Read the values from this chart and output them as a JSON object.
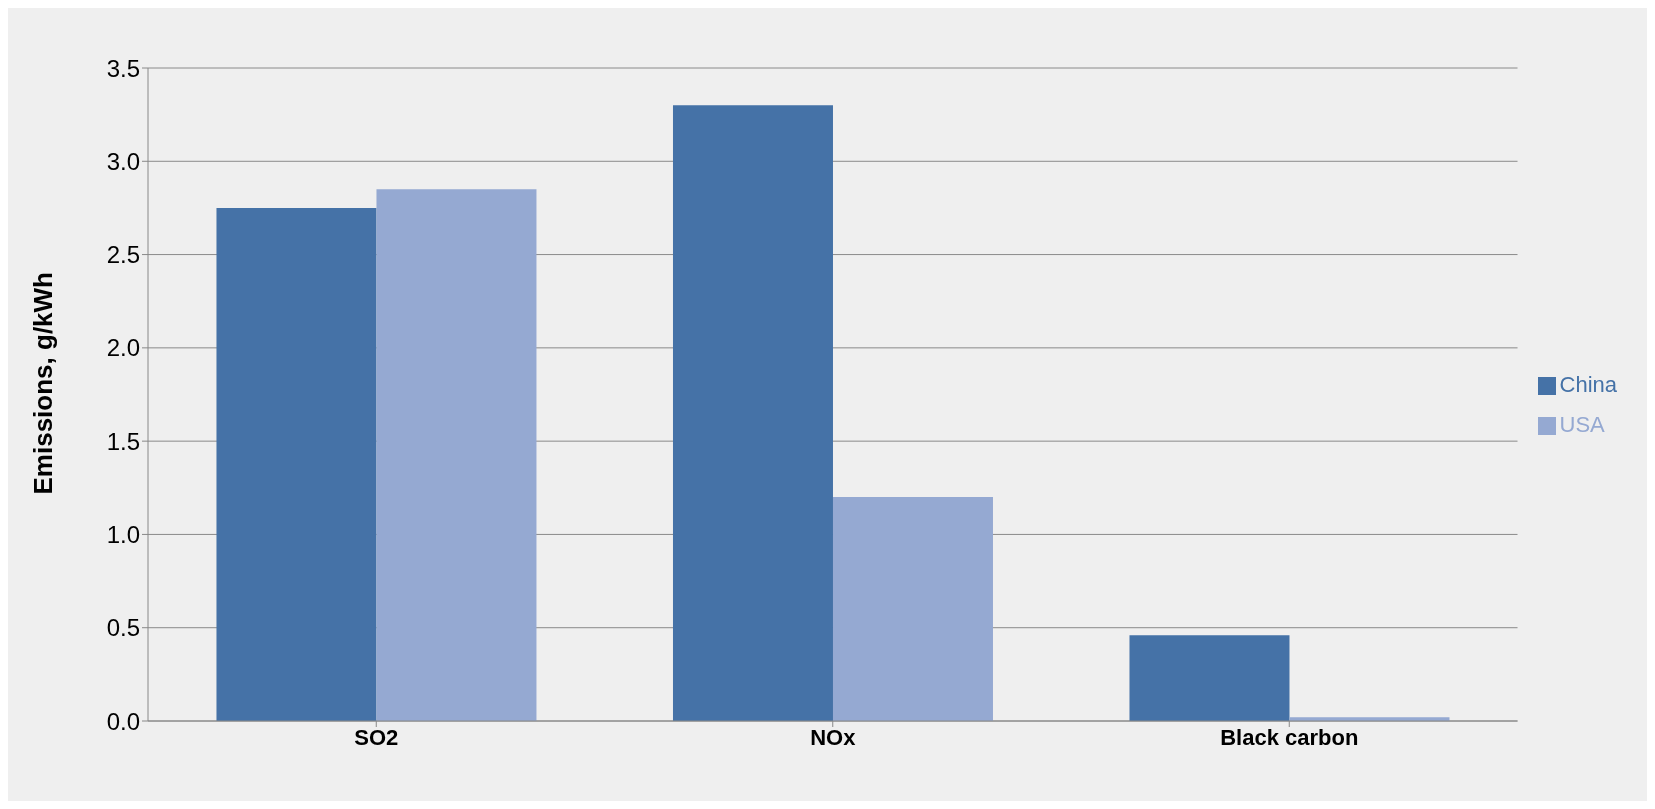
{
  "chart_data": {
    "type": "bar",
    "ylabel": "Emissions, g/kWh",
    "categories": [
      "SO2",
      "NOx",
      "Black carbon"
    ],
    "series": [
      {
        "name": "China",
        "color": "#4572a7",
        "values": [
          2.75,
          3.3,
          0.46
        ]
      },
      {
        "name": "USA",
        "color": "#95a9d2",
        "values": [
          2.85,
          1.2,
          0.02
        ]
      }
    ],
    "ylim": [
      0,
      3.5
    ],
    "yticks": [
      {
        "value": 0,
        "label": "0.0"
      },
      {
        "value": 0.5,
        "label": "0.5"
      },
      {
        "value": 1,
        "label": "1.0"
      },
      {
        "value": 1.5,
        "label": "1.5"
      },
      {
        "value": 2,
        "label": "2.0"
      },
      {
        "value": 2.5,
        "label": "2.5"
      },
      {
        "value": 3,
        "label": "3.0"
      },
      {
        "value": 3.5,
        "label": "3.5"
      }
    ],
    "grid": "y",
    "legend": "right"
  }
}
